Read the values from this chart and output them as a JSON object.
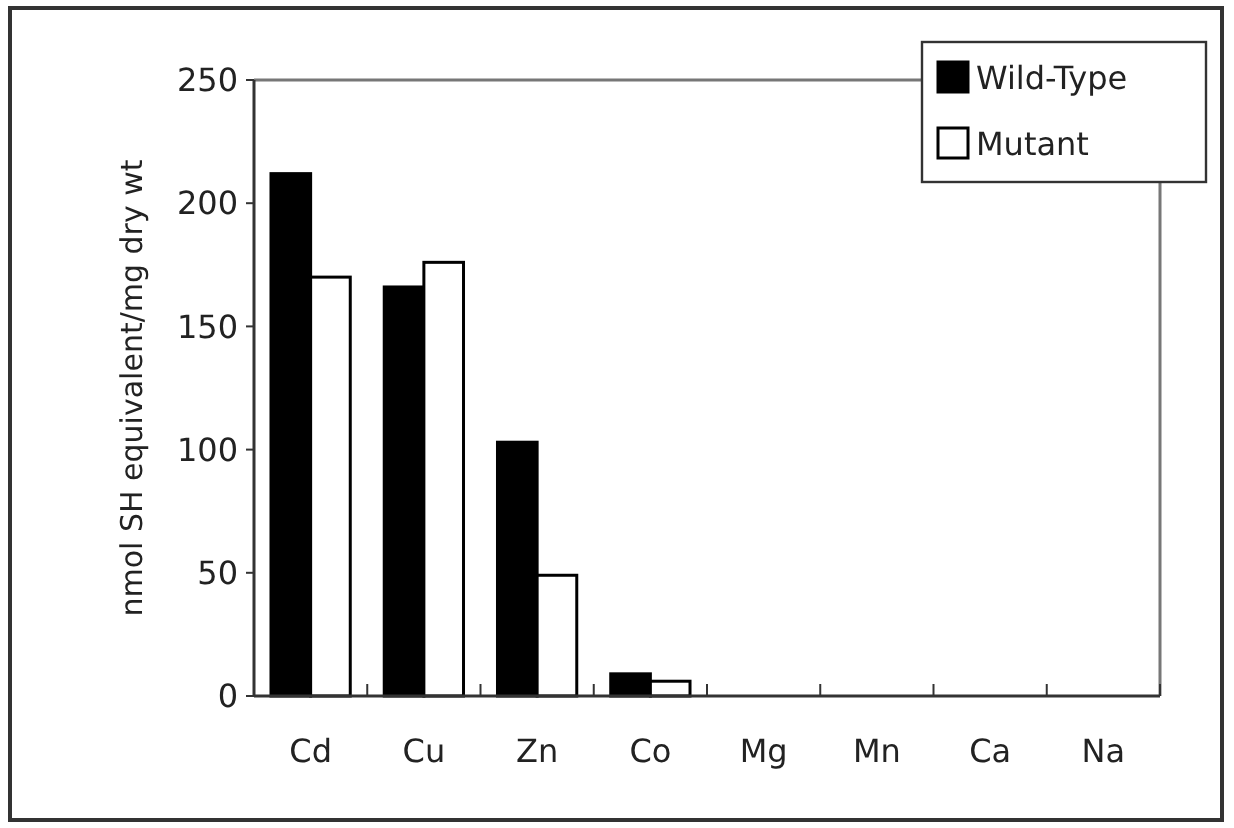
{
  "chart_data": {
    "type": "bar",
    "ylabel": "nmol SH equivalent/mg dry wt",
    "categories": [
      "Cd",
      "Cu",
      "Zn",
      "Co",
      "Mg",
      "Mn",
      "Ca",
      "Na"
    ],
    "series": [
      {
        "name": "Wild-Type",
        "color": "#000000",
        "values": [
          212,
          166,
          103,
          9,
          0,
          0,
          0,
          0
        ]
      },
      {
        "name": "Mutant",
        "color": "#ffffff",
        "values": [
          170,
          176,
          49,
          6,
          0,
          0,
          0,
          0
        ]
      }
    ],
    "ylim": [
      0,
      250
    ],
    "yticks": [
      0,
      50,
      100,
      150,
      200,
      250
    ],
    "grid": false,
    "legend": "top right"
  }
}
